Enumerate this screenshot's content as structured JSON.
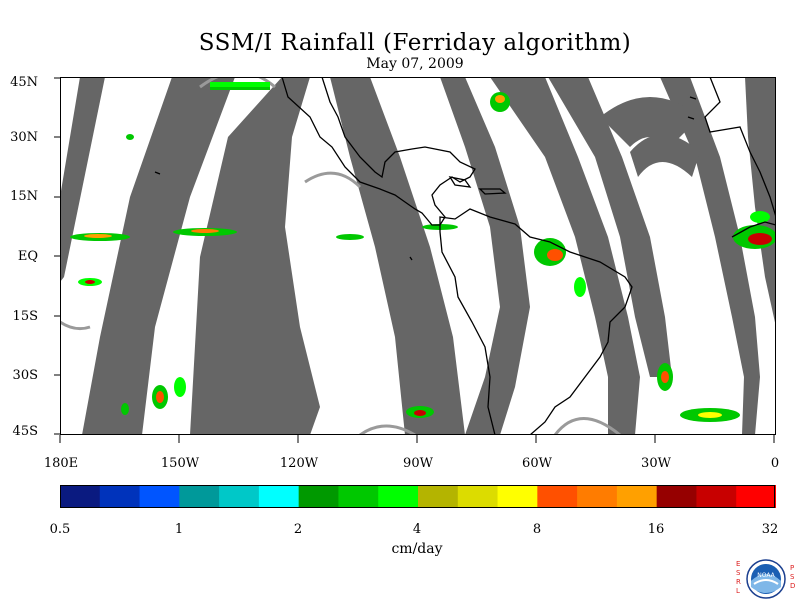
{
  "title": "SSM/I Rainfall (Ferriday algorithm)",
  "date": "May 07, 2009",
  "map": {
    "lat_labels": [
      "45N",
      "30N",
      "15N",
      "EQ",
      "15S",
      "30S",
      "45S"
    ],
    "lon_labels": [
      "180E",
      "150W",
      "120W",
      "90W",
      "60W",
      "30W",
      "0"
    ],
    "colors": {
      "no_data": "#666666",
      "land_outline": "#000000",
      "background": "#ffffff"
    }
  },
  "colorbar": {
    "tick_labels": [
      "0.5",
      "1",
      "2",
      "4",
      "8",
      "16",
      "32"
    ],
    "units": "cm/day",
    "colors": [
      "#0a1a80",
      "#0033bb",
      "#0055ff",
      "#00999a",
      "#00c8c8",
      "#00ffff",
      "#009900",
      "#00c800",
      "#00ff00",
      "#b4b400",
      "#dcdc00",
      "#ffff00",
      "#ff5000",
      "#ff7c00",
      "#ffa000",
      "#960000",
      "#c80000",
      "#ff0000"
    ]
  },
  "logo": {
    "left_letters": [
      "E",
      "S",
      "R",
      "L"
    ],
    "right_letters": [
      "P",
      "S",
      "D"
    ],
    "text": "NOAA"
  }
}
